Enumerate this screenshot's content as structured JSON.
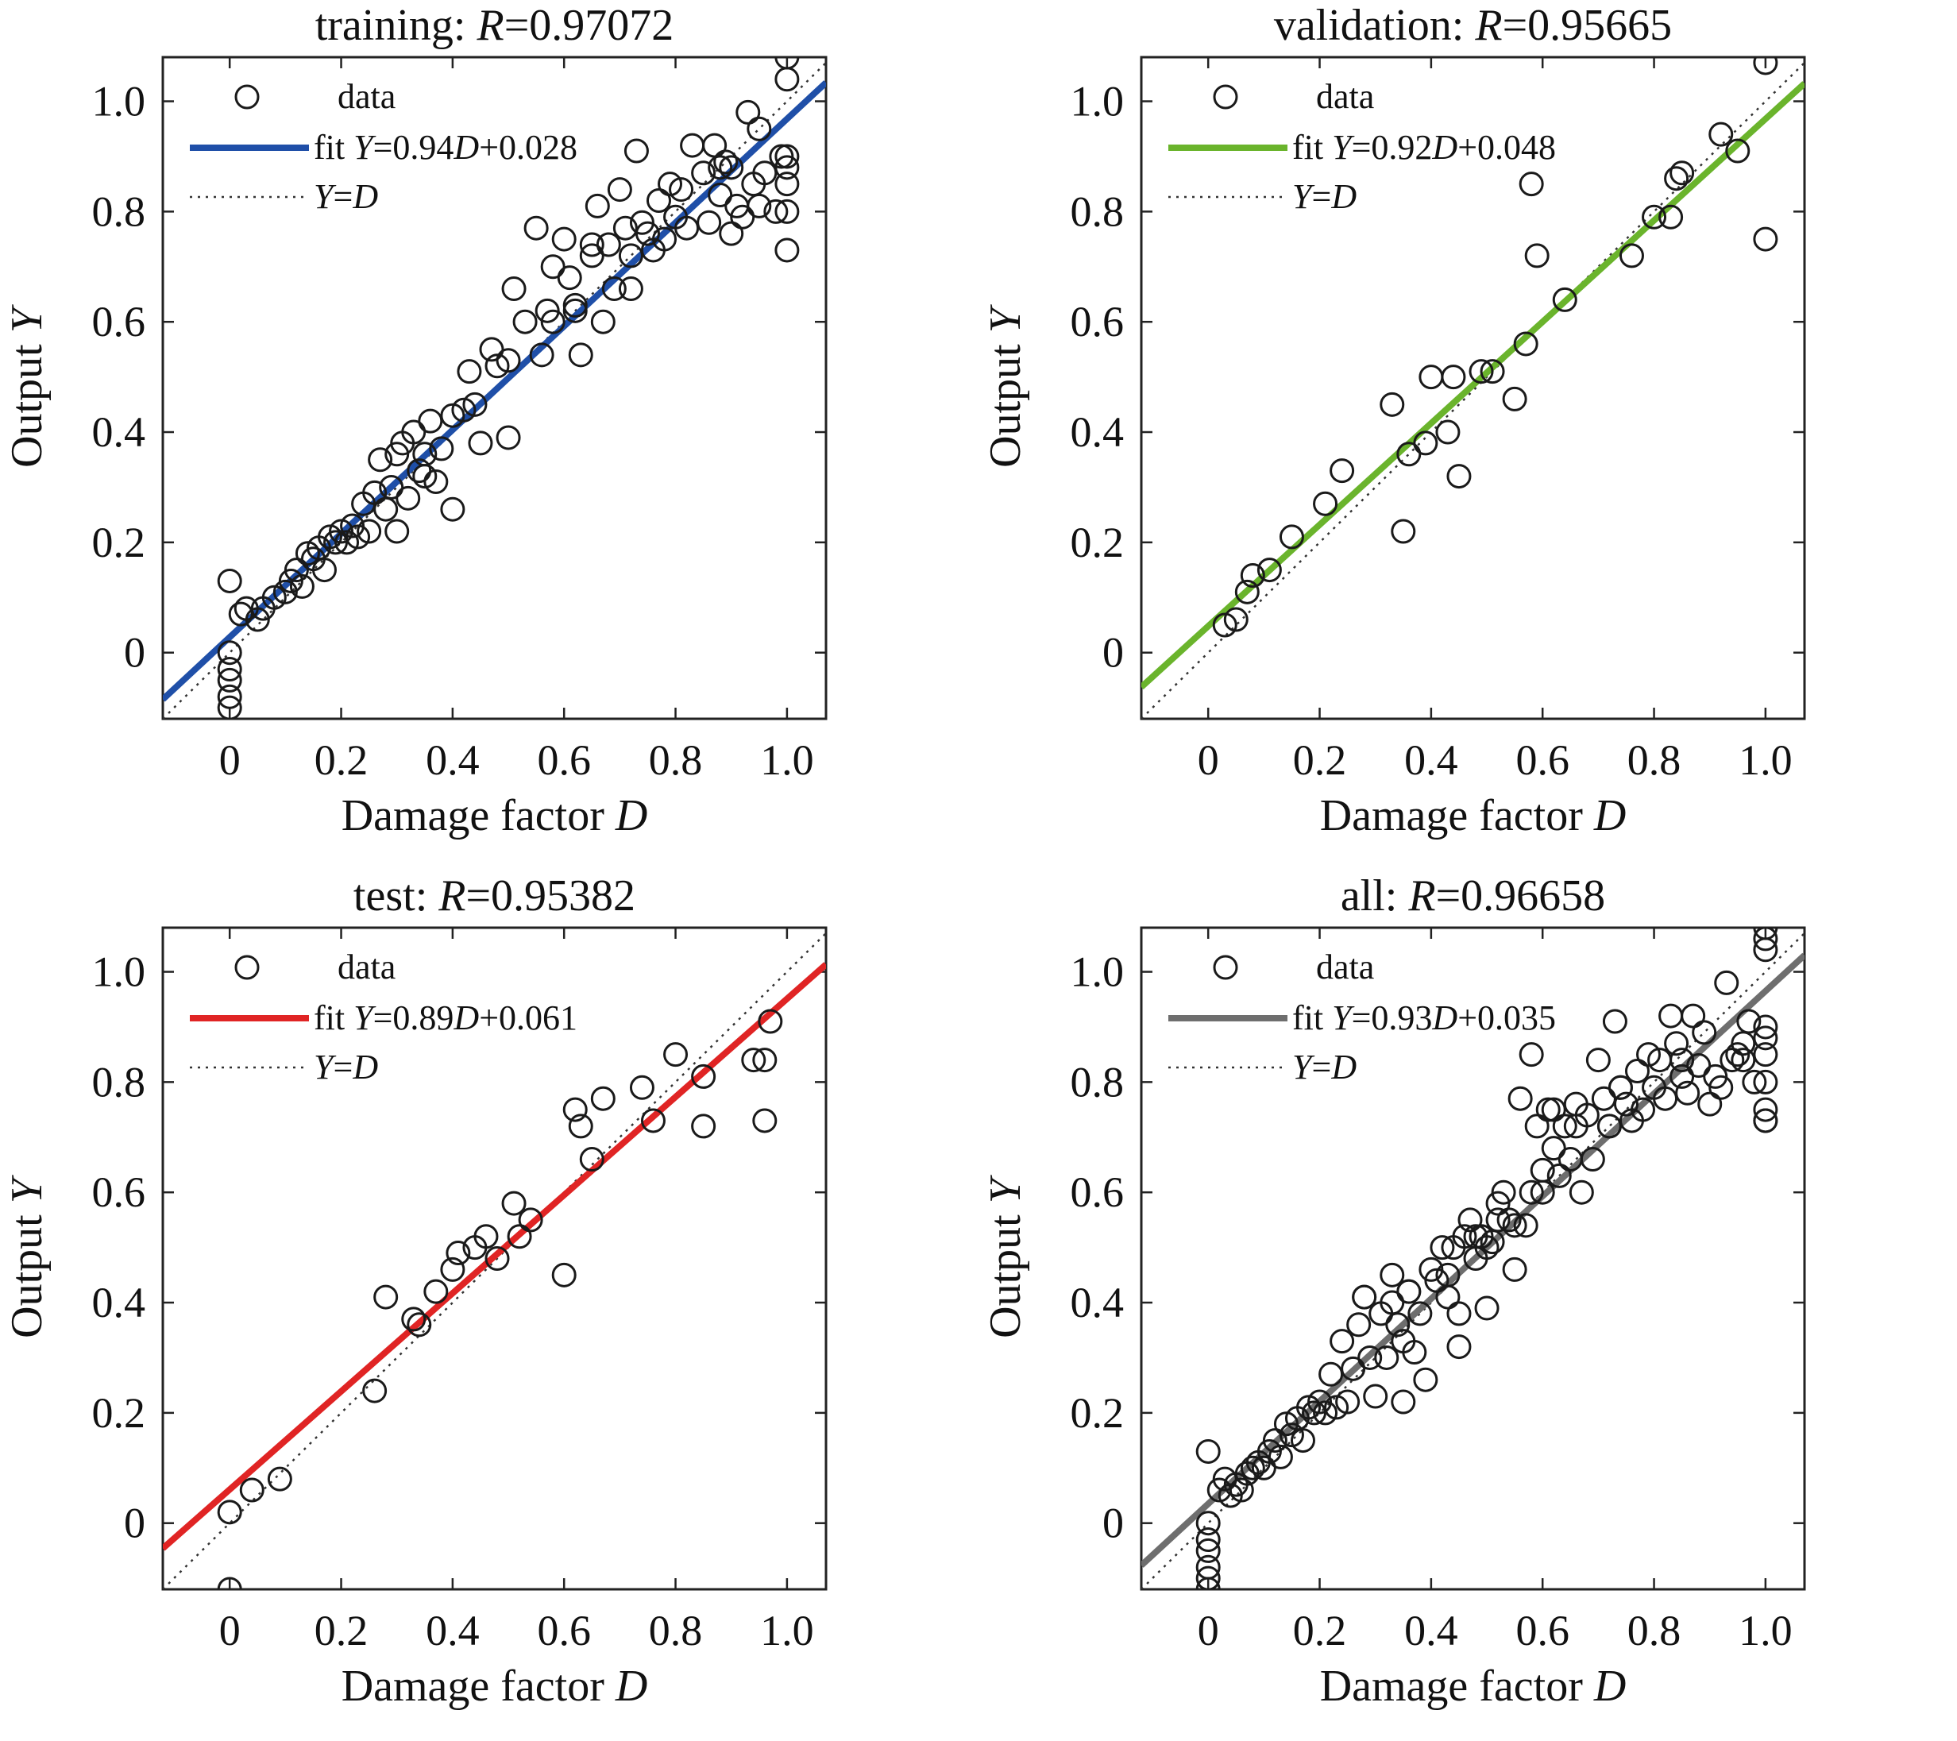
{
  "chart_data": [
    {
      "type": "scatter",
      "id": "training",
      "title_prefix": "training: ",
      "title_var": "R",
      "title_value": "=0.97072",
      "xlabel_text": "Damage factor ",
      "xlabel_var": "D",
      "ylabel_text": "Output ",
      "ylabel_var": "Y",
      "xlim": [
        -0.12,
        1.07
      ],
      "ylim": [
        -0.12,
        1.08
      ],
      "xticks": [
        0,
        0.2,
        0.4,
        0.6,
        0.8,
        1.0
      ],
      "xtick_labels": [
        "0",
        "0.2",
        "0.4",
        "0.6",
        "0.8",
        "1.0"
      ],
      "yticks": [
        0,
        0.2,
        0.4,
        0.6,
        0.8,
        1.0
      ],
      "ytick_labels": [
        "0",
        "0.2",
        "0.4",
        "0.6",
        "0.8",
        "1.0"
      ],
      "fit_color": "#1f4fa8",
      "fit_slope": 0.94,
      "fit_intercept": 0.028,
      "legend": {
        "data": "data",
        "fit_prefix": "fit ",
        "fit_y": "Y",
        "fit_mid": "=0.94",
        "fit_d": "D",
        "fit_suffix": "+0.028",
        "ident_y": "Y",
        "ident_eq": "=",
        "ident_d": "D"
      },
      "series": [
        {
          "x": [
            0,
            0,
            0,
            0,
            0,
            0,
            0.02,
            0.03,
            0.05,
            0.06,
            0.08,
            0.1,
            0.11,
            0.12,
            0.13,
            0.14,
            0.15,
            0.16,
            0.17,
            0.18,
            0.19,
            0.2,
            0.21,
            0.22,
            0.23,
            0.24,
            0.25,
            0.26,
            0.27,
            0.28,
            0.29,
            0.3,
            0.31,
            0.32,
            0.33,
            0.34,
            0.35,
            0.36,
            0.37,
            0.38,
            0.4,
            0.42,
            0.43,
            0.45,
            0.47,
            0.48,
            0.5,
            0.51,
            0.53,
            0.55,
            0.56,
            0.57,
            0.58,
            0.6,
            0.61,
            0.62,
            0.63,
            0.65,
            0.66,
            0.67,
            0.68,
            0.69,
            0.7,
            0.71,
            0.72,
            0.73,
            0.74,
            0.75,
            0.76,
            0.77,
            0.78,
            0.79,
            0.8,
            0.81,
            0.82,
            0.83,
            0.85,
            0.86,
            0.87,
            0.88,
            0.89,
            0.9,
            0.91,
            0.92,
            0.93,
            0.94,
            0.95,
            0.96,
            0.98,
            0.99,
            1.0,
            1.0,
            1.0,
            1.0,
            1.0,
            1.0,
            1.0,
            0.88,
            0.9,
            0.95,
            0.62,
            0.58,
            0.44,
            0.4,
            0.5,
            0.65,
            0.72,
            0.3,
            0.35
          ],
          "y": [
            -0.1,
            -0.08,
            -0.05,
            -0.03,
            0.0,
            0.13,
            0.07,
            0.08,
            0.06,
            0.08,
            0.1,
            0.11,
            0.13,
            0.15,
            0.12,
            0.18,
            0.17,
            0.19,
            0.15,
            0.21,
            0.2,
            0.22,
            0.2,
            0.23,
            0.21,
            0.27,
            0.22,
            0.29,
            0.35,
            0.26,
            0.3,
            0.22,
            0.38,
            0.28,
            0.4,
            0.33,
            0.36,
            0.42,
            0.31,
            0.37,
            0.26,
            0.44,
            0.51,
            0.38,
            0.55,
            0.52,
            0.39,
            0.66,
            0.6,
            0.77,
            0.54,
            0.62,
            0.7,
            0.75,
            0.68,
            0.63,
            0.54,
            0.72,
            0.81,
            0.6,
            0.74,
            0.66,
            0.84,
            0.77,
            0.72,
            0.91,
            0.78,
            0.76,
            0.73,
            0.82,
            0.75,
            0.85,
            0.79,
            0.84,
            0.77,
            0.92,
            0.87,
            0.78,
            0.92,
            0.83,
            0.89,
            0.76,
            0.81,
            0.79,
            0.98,
            0.85,
            0.81,
            0.87,
            0.8,
            0.9,
            0.73,
            0.8,
            0.85,
            0.88,
            0.9,
            1.04,
            1.08,
            0.88,
            0.88,
            0.95,
            0.62,
            0.6,
            0.45,
            0.43,
            0.53,
            0.74,
            0.66,
            0.36,
            0.32
          ]
        }
      ]
    },
    {
      "type": "scatter",
      "id": "validation",
      "title_prefix": "validation: ",
      "title_var": "R",
      "title_value": "=0.95665",
      "xlabel_text": "Damage factor ",
      "xlabel_var": "D",
      "ylabel_text": "Output ",
      "ylabel_var": "Y",
      "xlim": [
        -0.12,
        1.07
      ],
      "ylim": [
        -0.12,
        1.08
      ],
      "xticks": [
        0,
        0.2,
        0.4,
        0.6,
        0.8,
        1.0
      ],
      "xtick_labels": [
        "0",
        "0.2",
        "0.4",
        "0.6",
        "0.8",
        "1.0"
      ],
      "yticks": [
        0,
        0.2,
        0.4,
        0.6,
        0.8,
        1.0
      ],
      "ytick_labels": [
        "0",
        "0.2",
        "0.4",
        "0.6",
        "0.8",
        "1.0"
      ],
      "fit_color": "#6ab42c",
      "fit_slope": 0.92,
      "fit_intercept": 0.048,
      "legend": {
        "data": "data",
        "fit_prefix": "fit ",
        "fit_y": "Y",
        "fit_mid": "=0.92",
        "fit_d": "D",
        "fit_suffix": "+0.048",
        "ident_y": "Y",
        "ident_eq": "=",
        "ident_d": "D"
      },
      "series": [
        {
          "x": [
            0.03,
            0.05,
            0.07,
            0.08,
            0.11,
            0.15,
            0.21,
            0.24,
            0.33,
            0.35,
            0.36,
            0.39,
            0.4,
            0.43,
            0.44,
            0.45,
            0.49,
            0.51,
            0.55,
            0.57,
            0.58,
            0.59,
            0.64,
            0.76,
            0.8,
            0.83,
            0.84,
            0.85,
            0.92,
            0.95,
            1.0,
            1.0
          ],
          "y": [
            0.05,
            0.06,
            0.11,
            0.14,
            0.15,
            0.21,
            0.27,
            0.33,
            0.45,
            0.22,
            0.36,
            0.38,
            0.5,
            0.4,
            0.5,
            0.32,
            0.51,
            0.51,
            0.46,
            0.56,
            0.85,
            0.72,
            0.64,
            0.72,
            0.79,
            0.79,
            0.86,
            0.87,
            0.94,
            0.91,
            1.07,
            0.75
          ]
        }
      ]
    },
    {
      "type": "scatter",
      "id": "test",
      "title_prefix": "test: ",
      "title_var": "R",
      "title_value": "=0.95382",
      "xlabel_text": "Damage factor ",
      "xlabel_var": "D",
      "ylabel_text": "Output ",
      "ylabel_var": "Y",
      "xlim": [
        -0.12,
        1.07
      ],
      "ylim": [
        -0.12,
        1.08
      ],
      "xticks": [
        0,
        0.2,
        0.4,
        0.6,
        0.8,
        1.0
      ],
      "xtick_labels": [
        "0",
        "0.2",
        "0.4",
        "0.6",
        "0.8",
        "1.0"
      ],
      "yticks": [
        0,
        0.2,
        0.4,
        0.6,
        0.8,
        1.0
      ],
      "ytick_labels": [
        "0",
        "0.2",
        "0.4",
        "0.6",
        "0.8",
        "1.0"
      ],
      "fit_color": "#e02424",
      "fit_slope": 0.89,
      "fit_intercept": 0.061,
      "legend": {
        "data": "data",
        "fit_prefix": "fit ",
        "fit_y": "Y",
        "fit_mid": "=0.89",
        "fit_d": "D",
        "fit_suffix": "+0.061",
        "ident_y": "Y",
        "ident_eq": "=",
        "ident_d": "D"
      },
      "series": [
        {
          "x": [
            0.0,
            0.0,
            0.04,
            0.09,
            0.26,
            0.28,
            0.33,
            0.34,
            0.37,
            0.4,
            0.41,
            0.44,
            0.46,
            0.48,
            0.51,
            0.52,
            0.54,
            0.6,
            0.62,
            0.63,
            0.65,
            0.67,
            0.74,
            0.76,
            0.8,
            0.85,
            0.85,
            0.94,
            0.96,
            0.96,
            0.97
          ],
          "y": [
            -0.12,
            0.02,
            0.06,
            0.08,
            0.24,
            0.41,
            0.37,
            0.36,
            0.42,
            0.46,
            0.49,
            0.5,
            0.52,
            0.48,
            0.58,
            0.52,
            0.55,
            0.45,
            0.75,
            0.72,
            0.66,
            0.77,
            0.79,
            0.73,
            0.85,
            0.72,
            0.81,
            0.84,
            0.84,
            0.73,
            0.91
          ]
        }
      ]
    },
    {
      "type": "scatter",
      "id": "all",
      "title_prefix": "all: ",
      "title_var": "R",
      "title_value": "=0.96658",
      "xlabel_text": "Damage factor ",
      "xlabel_var": "D",
      "ylabel_text": "Output ",
      "ylabel_var": "Y",
      "xlim": [
        -0.12,
        1.07
      ],
      "ylim": [
        -0.12,
        1.08
      ],
      "xticks": [
        0,
        0.2,
        0.4,
        0.6,
        0.8,
        1.0
      ],
      "xtick_labels": [
        "0",
        "0.2",
        "0.4",
        "0.6",
        "0.8",
        "1.0"
      ],
      "yticks": [
        0,
        0.2,
        0.4,
        0.6,
        0.8,
        1.0
      ],
      "ytick_labels": [
        "0",
        "0.2",
        "0.4",
        "0.6",
        "0.8",
        "1.0"
      ],
      "fit_color": "#6e6e6e",
      "fit_slope": 0.93,
      "fit_intercept": 0.035,
      "legend": {
        "data": "data",
        "fit_prefix": "fit ",
        "fit_y": "Y",
        "fit_mid": "=0.93",
        "fit_d": "D",
        "fit_suffix": "+0.035",
        "ident_y": "Y",
        "ident_eq": "=",
        "ident_d": "D"
      },
      "series": [
        {
          "x": [
            0,
            0,
            0,
            0,
            0,
            0,
            0,
            0.02,
            0.03,
            0.04,
            0.05,
            0.06,
            0.07,
            0.08,
            0.09,
            0.1,
            0.11,
            0.12,
            0.13,
            0.14,
            0.15,
            0.16,
            0.17,
            0.18,
            0.19,
            0.2,
            0.21,
            0.22,
            0.23,
            0.24,
            0.25,
            0.26,
            0.27,
            0.28,
            0.29,
            0.3,
            0.31,
            0.32,
            0.33,
            0.34,
            0.35,
            0.36,
            0.37,
            0.38,
            0.39,
            0.4,
            0.41,
            0.42,
            0.43,
            0.44,
            0.45,
            0.46,
            0.47,
            0.48,
            0.49,
            0.5,
            0.51,
            0.52,
            0.53,
            0.54,
            0.55,
            0.56,
            0.57,
            0.58,
            0.59,
            0.6,
            0.61,
            0.62,
            0.63,
            0.64,
            0.65,
            0.66,
            0.67,
            0.68,
            0.69,
            0.7,
            0.71,
            0.72,
            0.73,
            0.74,
            0.75,
            0.76,
            0.77,
            0.78,
            0.79,
            0.8,
            0.81,
            0.82,
            0.83,
            0.84,
            0.85,
            0.86,
            0.87,
            0.88,
            0.89,
            0.9,
            0.91,
            0.92,
            0.93,
            0.94,
            0.95,
            0.96,
            0.97,
            0.98,
            1.0,
            1.0,
            1.0,
            1.0,
            1.0,
            1.0,
            1.0,
            1.0,
            1.0,
            1.0,
            0.55,
            0.58,
            0.6,
            0.35,
            0.43,
            0.45,
            0.33,
            0.28,
            0.36,
            0.62,
            0.66,
            0.74,
            0.85,
            0.96,
            0.72,
            0.5,
            0.48,
            0.52
          ],
          "y": [
            -0.12,
            -0.1,
            -0.08,
            -0.05,
            -0.03,
            0.0,
            0.13,
            0.06,
            0.08,
            0.05,
            0.07,
            0.06,
            0.09,
            0.1,
            0.11,
            0.1,
            0.13,
            0.15,
            0.12,
            0.18,
            0.16,
            0.19,
            0.15,
            0.21,
            0.2,
            0.22,
            0.2,
            0.27,
            0.21,
            0.33,
            0.22,
            0.28,
            0.36,
            0.41,
            0.3,
            0.23,
            0.38,
            0.3,
            0.4,
            0.36,
            0.33,
            0.42,
            0.31,
            0.38,
            0.26,
            0.46,
            0.44,
            0.5,
            0.41,
            0.5,
            0.38,
            0.52,
            0.55,
            0.48,
            0.52,
            0.39,
            0.51,
            0.58,
            0.6,
            0.55,
            0.46,
            0.77,
            0.54,
            0.85,
            0.72,
            0.64,
            0.75,
            0.68,
            0.63,
            0.72,
            0.66,
            0.76,
            0.6,
            0.74,
            0.66,
            0.84,
            0.77,
            0.72,
            0.91,
            0.79,
            0.76,
            0.73,
            0.82,
            0.75,
            0.85,
            0.79,
            0.84,
            0.77,
            0.92,
            0.87,
            0.81,
            0.78,
            0.92,
            0.83,
            0.89,
            0.76,
            0.81,
            0.79,
            0.98,
            0.84,
            0.85,
            0.87,
            0.91,
            0.8,
            0.73,
            0.75,
            0.8,
            0.85,
            0.88,
            0.9,
            1.04,
            1.06,
            1.08,
            0.73,
            0.54,
            0.6,
            0.6,
            0.22,
            0.45,
            0.32,
            0.45,
            0.41,
            0.42,
            0.75,
            0.72,
            0.79,
            0.84,
            0.84,
            0.72,
            0.5,
            0.52,
            0.55
          ]
        }
      ]
    }
  ]
}
